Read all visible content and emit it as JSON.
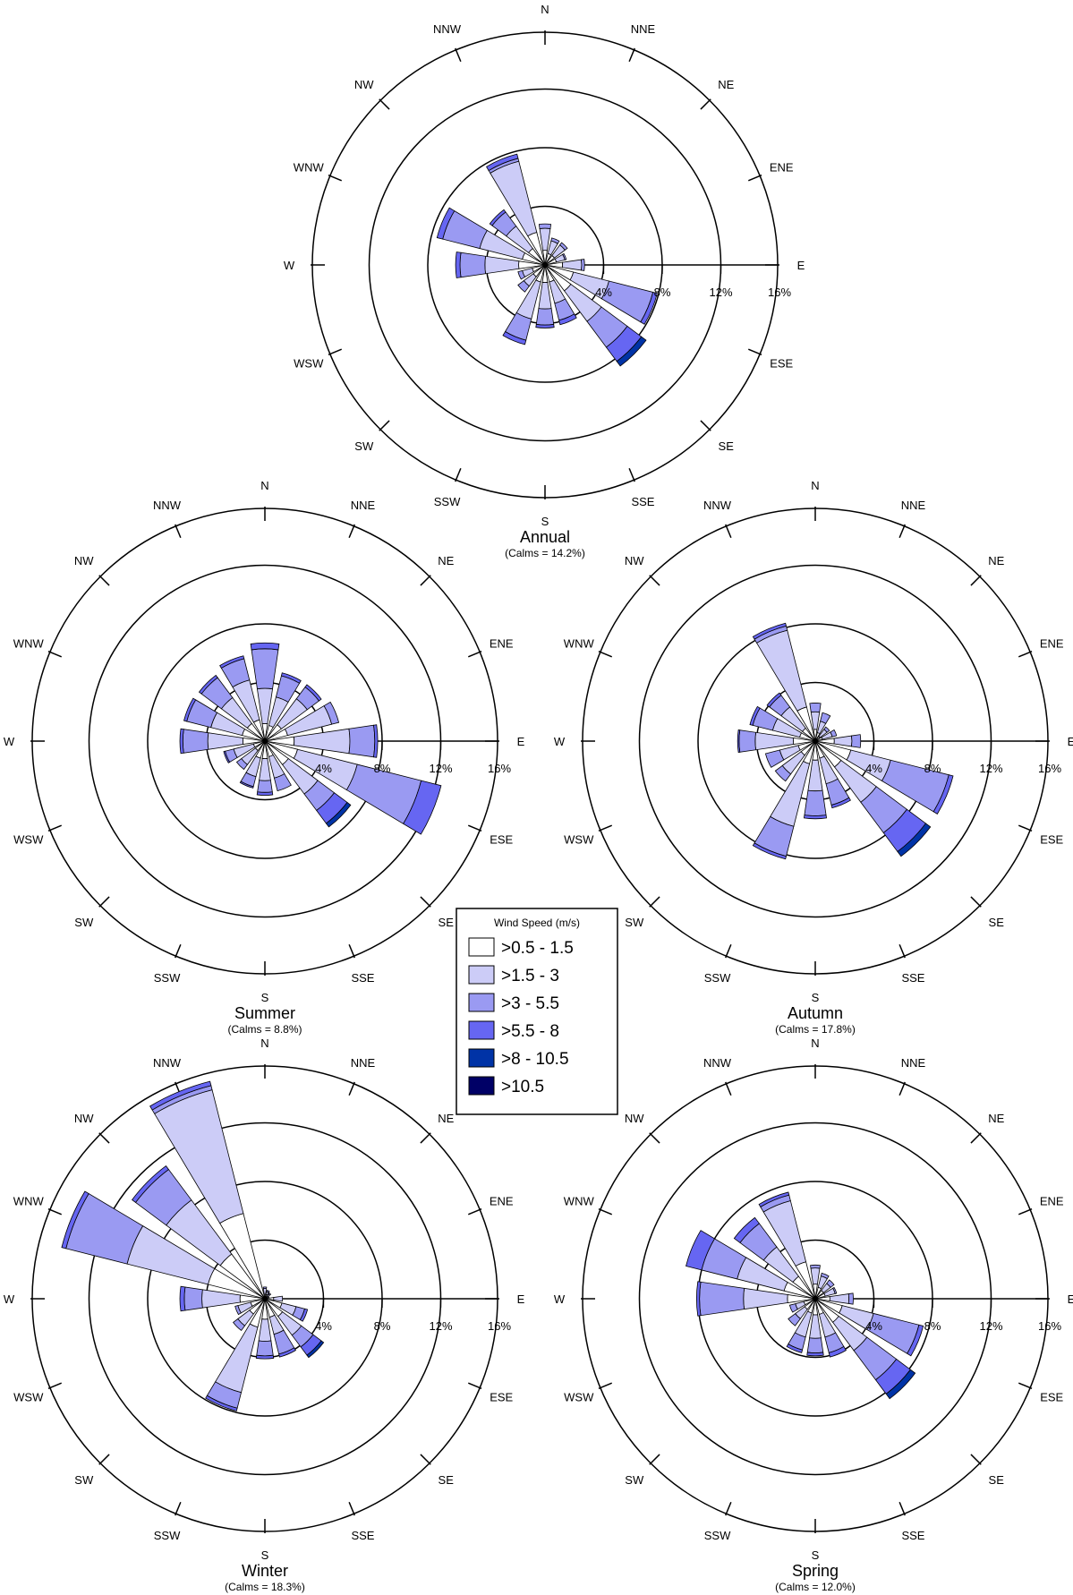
{
  "chart_data": {
    "type": "windrose",
    "directions": [
      "N",
      "NNE",
      "NE",
      "ENE",
      "E",
      "ESE",
      "SE",
      "SSE",
      "S",
      "SSW",
      "SW",
      "WSW",
      "W",
      "WNW",
      "NW",
      "NNW"
    ],
    "radial_ticks": [
      "4%",
      "8%",
      "12%",
      "16%"
    ],
    "radial_max": 16,
    "legend": {
      "title": "Wind Speed (m/s)",
      "bins": [
        {
          "label": ">0.5 - 1.5",
          "color": "#ffffff"
        },
        {
          "label": ">1.5 - 3",
          "color": "#ccccf7"
        },
        {
          "label": ">3 - 5.5",
          "color": "#9a9af2"
        },
        {
          "label": ">5.5 - 8",
          "color": "#6666f2"
        },
        {
          "label": ">8 - 10.5",
          "color": "#0033a6"
        },
        {
          "label": ">10.5",
          "color": "#000066"
        }
      ]
    },
    "roses": [
      {
        "title": "Annual",
        "calms": "(Calms = 14.2%)",
        "frequencies": [
          [
            1.0,
            1.5,
            0.3,
            0,
            0,
            0
          ],
          [
            0.8,
            0.9,
            0.2,
            0,
            0,
            0
          ],
          [
            0.8,
            0.9,
            0.2,
            0,
            0,
            0
          ],
          [
            0.8,
            0.6,
            0.1,
            0,
            0,
            0
          ],
          [
            1.2,
            1.3,
            0.2,
            0,
            0,
            0
          ],
          [
            2.0,
            2.5,
            3.1,
            0.3,
            0,
            0
          ],
          [
            2.2,
            2.6,
            2.2,
            1.2,
            0.4,
            0
          ],
          [
            1.2,
            1.5,
            1.2,
            0.3,
            0,
            0
          ],
          [
            1.2,
            1.8,
            1.1,
            0.2,
            0,
            0
          ],
          [
            1.2,
            2.6,
            1.5,
            0.3,
            0,
            0
          ],
          [
            1.0,
            0.8,
            0.5,
            0,
            0,
            0
          ],
          [
            0.9,
            0.7,
            0.3,
            0,
            0,
            0
          ],
          [
            1.8,
            2.3,
            1.7,
            0.3,
            0,
            0
          ],
          [
            1.6,
            3.0,
            2.6,
            0.4,
            0,
            0
          ],
          [
            1.4,
            1.9,
            1.2,
            0.2,
            0,
            0
          ],
          [
            2.3,
            5.0,
            0.2,
            0.3,
            0,
            0
          ]
        ]
      },
      {
        "title": "Summer",
        "calms": "(Calms = 8.8%)",
        "frequencies": [
          [
            1.2,
            2.4,
            2.7,
            0.4,
            0,
            0
          ],
          [
            1.1,
            2.0,
            1.5,
            0.2,
            0,
            0
          ],
          [
            1.4,
            2.2,
            1.0,
            0.2,
            0,
            0
          ],
          [
            1.6,
            3.1,
            0.5,
            0,
            0,
            0
          ],
          [
            2.0,
            3.8,
            1.7,
            0.2,
            0,
            0
          ],
          [
            2.3,
            4.2,
            4.5,
            1.4,
            0,
            0
          ],
          [
            2.0,
            2.5,
            1.4,
            1.1,
            0.3,
            0
          ],
          [
            1.1,
            1.5,
            0.9,
            0,
            0,
            0
          ],
          [
            1.2,
            1.5,
            0.8,
            0.2,
            0,
            0
          ],
          [
            1.2,
            1.3,
            0.7,
            0.1,
            0,
            0
          ],
          [
            0.8,
            1.2,
            0.4,
            0,
            0,
            0
          ],
          [
            0.8,
            1.4,
            0.6,
            0.1,
            0,
            0
          ],
          [
            1.5,
            2.4,
            1.7,
            0.2,
            0,
            0
          ],
          [
            1.6,
            2.2,
            1.7,
            0.2,
            0,
            0
          ],
          [
            1.5,
            2.2,
            1.7,
            0.2,
            0,
            0
          ],
          [
            1.5,
            2.8,
            1.5,
            0.2,
            0,
            0
          ]
        ]
      },
      {
        "title": "Autumn",
        "calms": "(Calms = 17.8%)",
        "frequencies": [
          [
            0.8,
            1.2,
            0.6,
            0,
            0,
            0
          ],
          [
            0.6,
            0.8,
            0.6,
            0,
            0,
            0
          ],
          [
            0.4,
            0.6,
            0.2,
            0,
            0,
            0
          ],
          [
            0.5,
            0.7,
            0.3,
            0,
            0,
            0
          ],
          [
            1.3,
            1.2,
            0.6,
            0,
            0,
            0
          ],
          [
            2.5,
            2.8,
            4.1,
            0.3,
            0,
            0
          ],
          [
            2.2,
            3.0,
            2.6,
            1.6,
            0.4,
            0
          ],
          [
            1.2,
            1.8,
            1.5,
            0.2,
            0,
            0
          ],
          [
            1.3,
            2.1,
            1.7,
            0.2,
            0,
            0
          ],
          [
            1.6,
            4.4,
            2.1,
            0.2,
            0,
            0
          ],
          [
            1.2,
            1.6,
            0.6,
            0,
            0,
            0
          ],
          [
            1.2,
            1.3,
            1.0,
            0,
            0,
            0
          ],
          [
            1.5,
            2.6,
            1.1,
            0.1,
            0,
            0
          ],
          [
            1.1,
            1.9,
            1.4,
            0.2,
            0,
            0
          ],
          [
            1.1,
            1.8,
            1.0,
            0.2,
            0,
            0
          ],
          [
            2.4,
            5.4,
            0.3,
            0.2,
            0,
            0
          ]
        ]
      },
      {
        "title": "Winter",
        "calms": "(Calms = 18.3%)",
        "frequencies": [
          [
            0.3,
            0.4,
            0.1,
            0,
            0,
            0
          ],
          [
            0.3,
            0.2,
            0.1,
            0,
            0,
            0
          ],
          [
            0.2,
            0.2,
            0.1,
            0,
            0,
            0
          ],
          [
            0.2,
            0.1,
            0,
            0,
            0,
            0
          ],
          [
            0.6,
            0.6,
            0,
            0,
            0,
            0
          ],
          [
            1.2,
            1.0,
            0.6,
            0.2,
            0,
            0
          ],
          [
            1.5,
            1.6,
            1.0,
            0.7,
            0.2,
            0
          ],
          [
            1.3,
            1.2,
            1.4,
            0.2,
            0,
            0
          ],
          [
            1.4,
            1.5,
            1.0,
            0.2,
            0,
            0
          ],
          [
            2.0,
            4.6,
            1.1,
            0.2,
            0,
            0
          ],
          [
            1.3,
            1.0,
            0.4,
            0,
            0,
            0
          ],
          [
            1.0,
            0.9,
            0.2,
            0,
            0,
            0
          ],
          [
            1.7,
            2.6,
            1.2,
            0.3,
            0,
            0
          ],
          [
            4.0,
            5.7,
            4.3,
            0.3,
            0,
            0
          ],
          [
            3.8,
            4.6,
            2.6,
            0.3,
            0,
            0
          ],
          [
            6.0,
            8.7,
            0.3,
            0.3,
            0,
            0
          ]
        ]
      },
      {
        "title": "Spring",
        "calms": "(Calms = 12.0%)",
        "frequencies": [
          [
            1.0,
            1.1,
            0.2,
            0,
            0,
            0
          ],
          [
            0.8,
            0.8,
            0.2,
            0,
            0,
            0
          ],
          [
            0.7,
            0.6,
            0.3,
            0,
            0,
            0
          ],
          [
            0.7,
            0.7,
            0.1,
            0,
            0,
            0
          ],
          [
            1.0,
            1.3,
            0.3,
            0,
            0,
            0
          ],
          [
            1.9,
            2.2,
            3.2,
            0.3,
            0,
            0
          ],
          [
            2.0,
            2.4,
            2.5,
            1.2,
            0.4,
            0
          ],
          [
            1.1,
            1.6,
            1.1,
            0.3,
            0,
            0
          ],
          [
            1.1,
            1.6,
            1.0,
            0.2,
            0,
            0
          ],
          [
            1.0,
            1.7,
            0.9,
            0.2,
            0,
            0
          ],
          [
            0.9,
            0.8,
            0.6,
            0,
            0,
            0
          ],
          [
            0.8,
            0.6,
            0.4,
            0,
            0,
            0
          ],
          [
            1.9,
            3.0,
            3.0,
            0.2,
            0,
            0
          ],
          [
            2.2,
            3.3,
            2.5,
            1.1,
            0,
            0
          ],
          [
            1.9,
            2.5,
            2.0,
            0.5,
            0,
            0
          ],
          [
            2.6,
            4.3,
            0.4,
            0.2,
            0,
            0
          ]
        ]
      }
    ]
  }
}
